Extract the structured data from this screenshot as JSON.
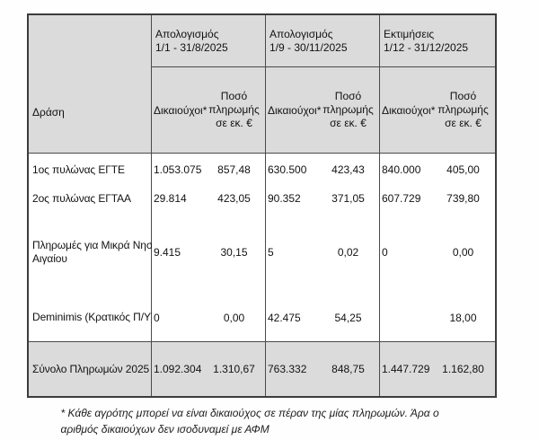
{
  "table": {
    "corner_label": "Δράση",
    "periods": [
      {
        "title": "Απολογισμός",
        "range": "1/1 - 31/8/2025"
      },
      {
        "title": "Απολογισμός",
        "range": "1/9 - 30/11/2025"
      },
      {
        "title": "Εκτιμήσεις",
        "range": "1/12 - 31/12/2025"
      }
    ],
    "subheaders": {
      "beneficiaries": "Δικαιούχοι*",
      "amount": "Ποσό πληρωμής σε εκ. €"
    },
    "rows": [
      {
        "label": "1ος πυλώνας ΕΓΤΕ",
        "values": [
          {
            "beneficiaries": "1.053.075",
            "amount": "857,48"
          },
          {
            "beneficiaries": "630.500",
            "amount": "423,43"
          },
          {
            "beneficiaries": "840.000",
            "amount": "405,00"
          }
        ]
      },
      {
        "label": "2ος πυλώνας ΕΓΤΑΑ",
        "values": [
          {
            "beneficiaries": "29.814",
            "amount": "423,05"
          },
          {
            "beneficiaries": "90.352",
            "amount": "371,05"
          },
          {
            "beneficiaries": "607.729",
            "amount": "739,80"
          }
        ]
      },
      {
        "label": "Πληρωμές για Μικρά Νησιά\nΑιγαίου",
        "values": [
          {
            "beneficiaries": "9.415",
            "amount": "30,15"
          },
          {
            "beneficiaries": "5",
            "amount": "0,02"
          },
          {
            "beneficiaries": "0",
            "amount": "0,00"
          }
        ]
      },
      {
        "label": "Deminimis (Κρατικός Π/Υ)",
        "values": [
          {
            "beneficiaries": "0",
            "amount": "0,00"
          },
          {
            "beneficiaries": "42.475",
            "amount": "54,25"
          },
          {
            "beneficiaries": "",
            "amount": "18,00"
          }
        ]
      }
    ],
    "total": {
      "label": "Σύνολο Πληρωμών 2025",
      "values": [
        {
          "beneficiaries": "1.092.304",
          "amount": "1.310,67"
        },
        {
          "beneficiaries": "763.332",
          "amount": "848,75"
        },
        {
          "beneficiaries": "1.447.729",
          "amount": "1.162,80"
        }
      ]
    }
  },
  "footnote": {
    "line1": "* Κάθε αγρότης μπορεί να είναι δικαιούχος σε πέραν της μίας πληρωμών. Άρα ο",
    "line2": "αριθμός δικαιούχων δεν ισοδυναμεί με ΑΦΜ"
  },
  "colors": {
    "header_bg": "#dbdbdb",
    "border": "#4a4a4a"
  }
}
